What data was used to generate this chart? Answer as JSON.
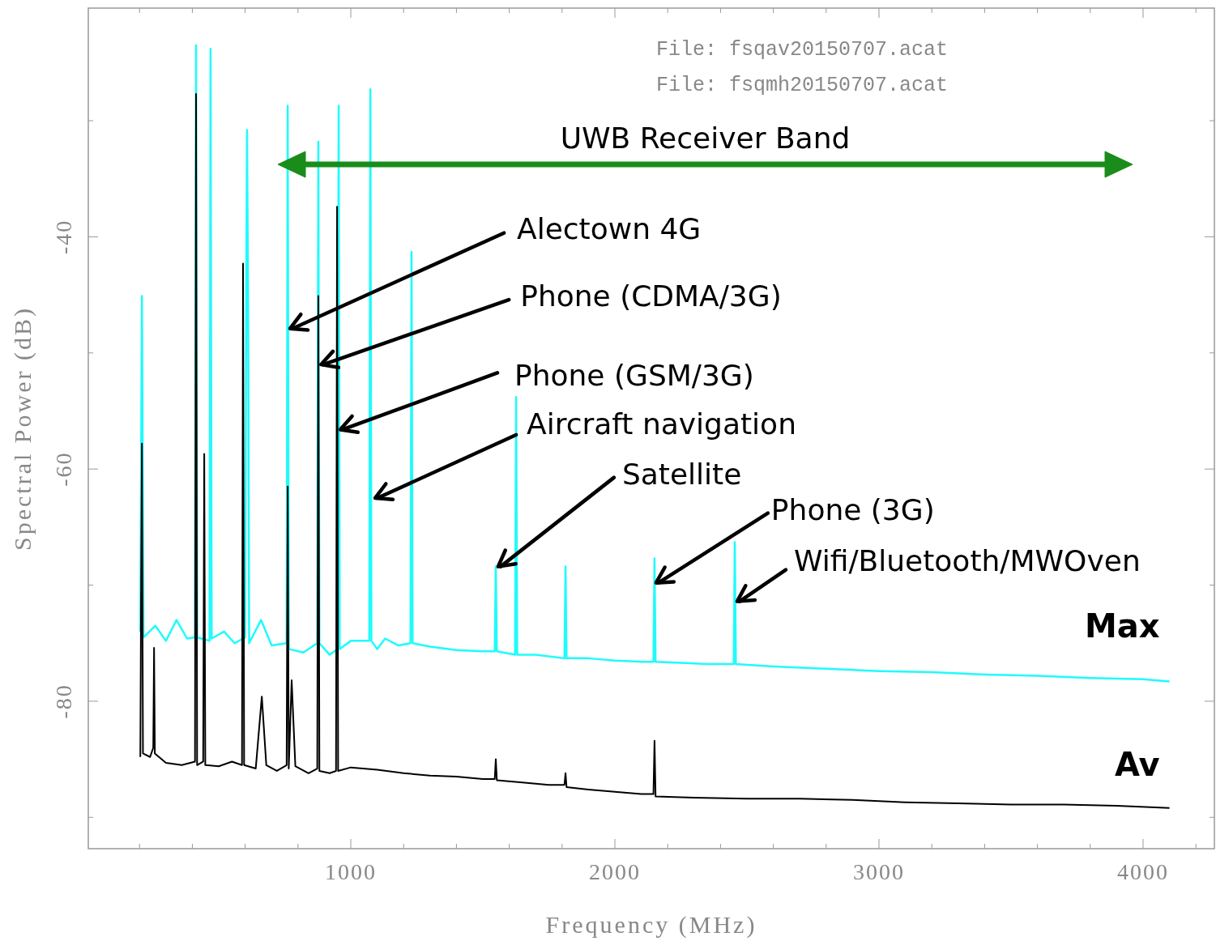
{
  "chart_data": {
    "type": "line",
    "xlabel": "Frequency (MHz)",
    "ylabel": "Spectral Power (dB)",
    "xlim": [
      6,
      4270
    ],
    "ylim": [
      -92.7,
      -20.3
    ],
    "xticks": [
      {
        "value": 200,
        "label": null
      },
      {
        "value": 400,
        "label": null
      },
      {
        "value": 600,
        "label": null
      },
      {
        "value": 800,
        "label": null
      },
      1000,
      {
        "value": 1200,
        "label": null
      },
      {
        "value": 1400,
        "label": null
      },
      {
        "value": 1600,
        "label": null
      },
      {
        "value": 1800,
        "label": null
      },
      2000,
      {
        "value": 2200,
        "label": null
      },
      {
        "value": 2400,
        "label": null
      },
      {
        "value": 2600,
        "label": null
      },
      {
        "value": 2800,
        "label": null
      },
      3000,
      {
        "value": 3200,
        "label": null
      },
      {
        "value": 3400,
        "label": null
      },
      {
        "value": 3600,
        "label": null
      },
      {
        "value": 3800,
        "label": null
      },
      4000,
      {
        "value": 4200,
        "label": null
      }
    ],
    "yticks": [
      {
        "value": -90,
        "label": null
      },
      -80,
      {
        "value": -70,
        "label": null
      },
      -60,
      {
        "value": -50,
        "label": null
      },
      -40,
      {
        "value": -30,
        "label": null
      }
    ],
    "grid": false,
    "legend": false,
    "marker": "none",
    "line_style": "solid",
    "series": [
      {
        "name": "Max",
        "color": "#1ffbfb",
        "x": [
          203,
          209,
          215,
          260,
          300,
          340,
          380,
          410,
          414,
          418,
          465,
          469,
          473,
          520,
          560,
          600,
          604,
          607,
          611,
          615,
          660,
          700,
          757,
          761,
          765,
          820,
          873,
          877,
          881,
          920,
          950,
          954,
          958,
          1000,
          1070,
          1074,
          1078,
          1100,
          1130,
          1180,
          1226,
          1230,
          1234,
          1300,
          1400,
          1500,
          1545,
          1549,
          1553,
          1622,
          1626,
          1630,
          1700,
          1809,
          1813,
          1817,
          1900,
          2000,
          2100,
          2146,
          2150,
          2154,
          2250,
          2350,
          2450,
          2454,
          2458,
          2600,
          2800,
          3000,
          3200,
          3400,
          3600,
          3800,
          4000,
          4100
        ],
        "values": [
          -74,
          -45.1,
          -74.5,
          -73.5,
          -74.8,
          -73,
          -74.6,
          -74.5,
          -23.5,
          -74.5,
          -74.8,
          -23.8,
          -74.6,
          -74,
          -75,
          -74.5,
          -45,
          -30.8,
          -45,
          -75,
          -73,
          -75.2,
          -75,
          -28.7,
          -75.5,
          -75.8,
          -75,
          -31.8,
          -75,
          -76,
          -75.5,
          -28.7,
          -75.5,
          -74.8,
          -74.8,
          -27.3,
          -74.8,
          -75.5,
          -74.6,
          -75.2,
          -75,
          -41.3,
          -75,
          -75.3,
          -75.6,
          -75.7,
          -75.7,
          -68.4,
          -75.7,
          -76,
          -53.8,
          -76,
          -76,
          -76.3,
          -68.4,
          -76.3,
          -76.3,
          -76.5,
          -76.6,
          -76.6,
          -67.7,
          -76.6,
          -76.7,
          -76.8,
          -76.8,
          -66.3,
          -76.8,
          -77,
          -77.2,
          -77.4,
          -77.5,
          -77.7,
          -77.8,
          -78,
          -78.1,
          -78.3
        ]
      },
      {
        "name": "Av",
        "color": "#000000",
        "x": [
          203,
          206,
          209,
          213,
          240,
          252,
          255,
          258,
          300,
          360,
          410,
          414,
          418,
          441,
          445,
          449,
          500,
          550,
          588,
          592,
          596,
          640,
          663,
          680,
          720,
          757,
          761,
          765,
          776,
          790,
          840,
          873,
          877,
          881,
          920,
          944,
          948,
          952,
          1000,
          1100,
          1200,
          1300,
          1400,
          1500,
          1545,
          1549,
          1553,
          1650,
          1750,
          1809,
          1813,
          1817,
          1900,
          2000,
          2100,
          2146,
          2150,
          2154,
          2300,
          2500,
          2700,
          2900,
          3100,
          3300,
          3500,
          3700,
          3900,
          4100
        ],
        "values": [
          -84.8,
          -70,
          -57.8,
          -84.5,
          -84.8,
          -84,
          -75.4,
          -84.5,
          -85.3,
          -85.5,
          -85.2,
          -27.7,
          -85.5,
          -85.2,
          -58.7,
          -85.5,
          -85.6,
          -85.2,
          -85.5,
          -42.3,
          -85.5,
          -85.8,
          -79.6,
          -85.5,
          -86,
          -85.5,
          -61.5,
          -85.8,
          -78.2,
          -85.6,
          -86.2,
          -85.8,
          -45.1,
          -86,
          -86.2,
          -86,
          -37.4,
          -86,
          -85.7,
          -85.9,
          -86.2,
          -86.4,
          -86.5,
          -86.7,
          -86.7,
          -85,
          -86.8,
          -87,
          -87.2,
          -87.2,
          -86.2,
          -87.4,
          -87.6,
          -87.8,
          -88,
          -88,
          -83.4,
          -88.2,
          -88.3,
          -88.4,
          -88.4,
          -88.5,
          -88.7,
          -88.8,
          -88.9,
          -88.9,
          -89,
          -89.2
        ]
      }
    ],
    "annotations": [
      "File: fsqav20150707.acat",
      "File: fsqmh20150707.acat",
      "UWB Receiver Band",
      {
        "text": "Alectown 4G",
        "x": 770,
        "y": -47.9
      },
      {
        "text": "Phone (CDMA/3G)",
        "x": 887,
        "y": -51.0
      },
      {
        "text": "Phone (GSM/3G)",
        "x": 960,
        "y": -56.6
      },
      {
        "text": "Aircraft navigation",
        "x": 1092,
        "y": -62.5
      },
      {
        "text": "Satellite",
        "x": 1558,
        "y": -68.4
      },
      {
        "text": "Phone (3G)",
        "x": 2156,
        "y": -69.8
      },
      {
        "text": "Wifi/Bluetooth/MWOven",
        "x": 2463,
        "y": -71.4
      }
    ]
  }
}
